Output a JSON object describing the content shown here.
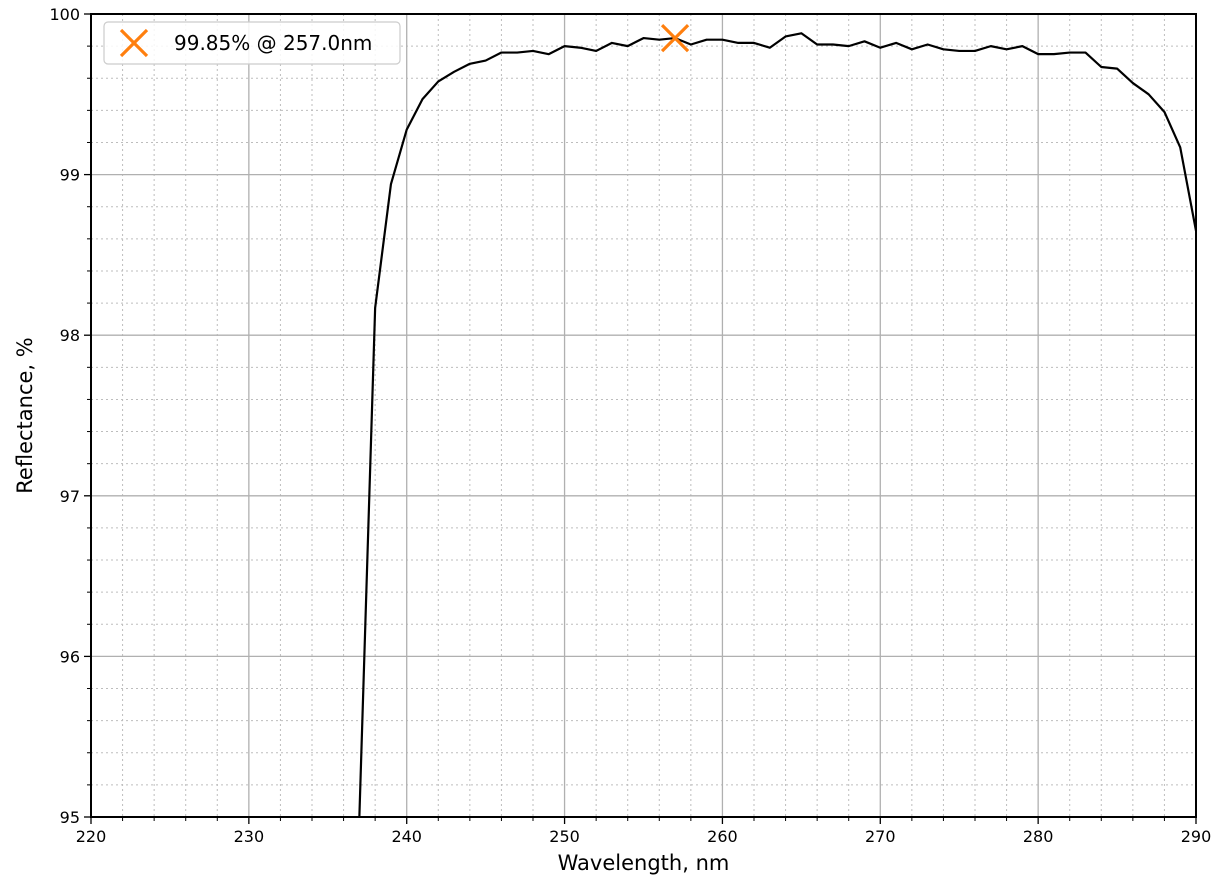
{
  "chart_data": {
    "type": "line",
    "xlabel": "Wavelength, nm",
    "ylabel": "Reflectance, %",
    "xlim": [
      220,
      290
    ],
    "ylim": [
      95,
      100
    ],
    "x_ticks": [
      220,
      230,
      240,
      250,
      260,
      270,
      280,
      290
    ],
    "y_ticks": [
      95,
      96,
      97,
      98,
      99,
      100
    ],
    "x_minor_step": 2,
    "y_minor_step": 0.2,
    "grid": "major and minor",
    "legend_placement": "top-left",
    "series": [
      {
        "color": "#000000",
        "x": [
          237,
          238,
          239,
          240,
          241,
          242,
          243,
          244,
          245,
          246,
          247,
          248,
          249,
          250,
          251,
          252,
          253,
          254,
          255,
          256,
          257,
          258,
          259,
          260,
          261,
          262,
          263,
          264,
          265,
          266,
          267,
          268,
          269,
          270,
          271,
          272,
          273,
          274,
          275,
          276,
          277,
          278,
          279,
          280,
          281,
          282,
          283,
          284,
          285,
          286,
          287,
          288,
          289,
          290
        ],
        "y": [
          95.0,
          98.17,
          98.94,
          99.28,
          99.47,
          99.58,
          99.64,
          99.69,
          99.71,
          99.76,
          99.76,
          99.77,
          99.75,
          99.8,
          99.79,
          99.77,
          99.82,
          99.8,
          99.85,
          99.84,
          99.85,
          99.81,
          99.84,
          99.84,
          99.82,
          99.82,
          99.79,
          99.86,
          99.88,
          99.81,
          99.81,
          99.8,
          99.83,
          99.79,
          99.82,
          99.78,
          99.81,
          99.78,
          99.77,
          99.77,
          99.8,
          99.78,
          99.8,
          99.75,
          99.75,
          99.76,
          99.76,
          99.67,
          99.66,
          99.57,
          99.5,
          99.39,
          99.17,
          98.65
        ]
      }
    ],
    "marker": {
      "x": 257.0,
      "y": 99.85,
      "symbol": "x",
      "color": "#ff7f0e",
      "label": "99.85% @ 257.0nm"
    }
  }
}
